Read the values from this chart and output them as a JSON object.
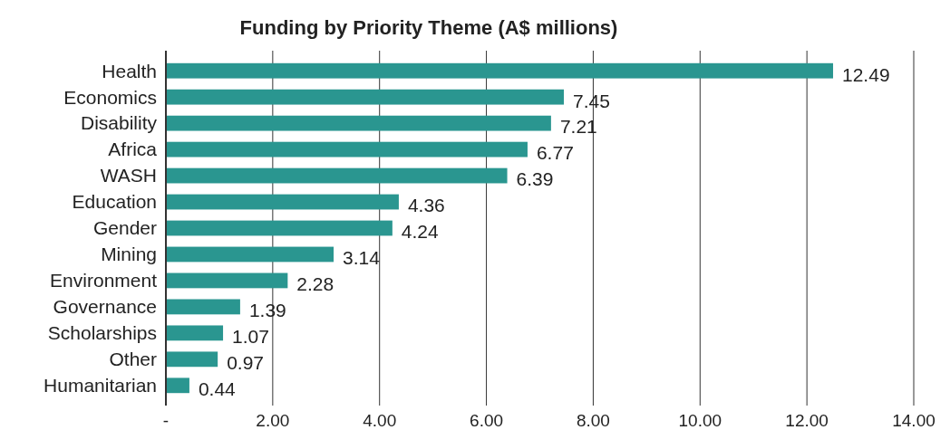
{
  "chart_data": {
    "type": "bar",
    "orientation": "horizontal",
    "title": "Funding by Priority Theme (A$ millions)",
    "categories": [
      "Health",
      "Economics",
      "Disability",
      "Africa",
      "WASH",
      "Education",
      "Gender",
      "Mining",
      "Environment",
      "Governance",
      "Scholarships",
      "Other",
      "Humanitarian"
    ],
    "values": [
      12.49,
      7.45,
      7.21,
      6.77,
      6.39,
      4.36,
      4.24,
      3.14,
      2.28,
      1.39,
      1.07,
      0.97,
      0.44
    ],
    "color": "#2a9690",
    "data_labels": true,
    "grid": "x",
    "xlim": [
      0,
      14
    ],
    "xticks": [
      {
        "value": 0,
        "label": "-"
      },
      {
        "value": 2,
        "label": "2.00"
      },
      {
        "value": 4,
        "label": "4.00"
      },
      {
        "value": 6,
        "label": "6.00"
      },
      {
        "value": 8,
        "label": "8.00"
      },
      {
        "value": 10,
        "label": "10.00"
      },
      {
        "value": 12,
        "label": "12.00"
      },
      {
        "value": 14,
        "label": "14.00"
      }
    ]
  }
}
